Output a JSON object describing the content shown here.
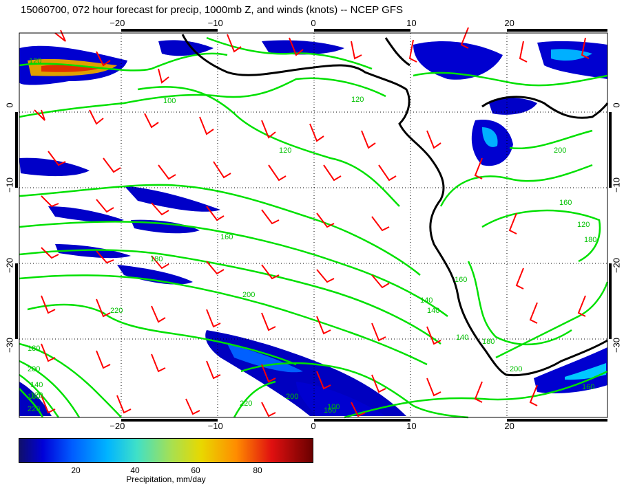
{
  "title": "15060700, 072 hour forecast for precip, 1000mb Z, and winds (knots) -- NCEP GFS",
  "map": {
    "lon_range": [
      -30,
      30
    ],
    "lat_range": [
      -39,
      9
    ],
    "x_ticks": [
      {
        "v": -20,
        "t": "−20"
      },
      {
        "v": -10,
        "t": "−10"
      },
      {
        "v": 0,
        "t": "0"
      },
      {
        "v": 10,
        "t": "10"
      },
      {
        "v": 20,
        "t": "20"
      }
    ],
    "y_ticks": [
      {
        "v": 0,
        "t": "0"
      },
      {
        "v": -10,
        "t": "−10"
      },
      {
        "v": -20,
        "t": "−20"
      },
      {
        "v": -30,
        "t": "−30"
      }
    ],
    "contour_color": "#00e000",
    "barb_color": "#ff0000",
    "coast_color": "#000000",
    "contour_labels": [
      "120",
      "100",
      "120",
      "120",
      "140",
      "160",
      "180",
      "200",
      "220",
      "160",
      "120",
      "140",
      "160",
      "180",
      "200",
      "140",
      "180",
      "200",
      "220",
      "160",
      "180",
      "200",
      "100",
      "120",
      "140",
      "160",
      "180",
      "200",
      "220"
    ]
  },
  "colorbar": {
    "ticks": [
      "20",
      "40",
      "60",
      "80"
    ],
    "label": "Precipitation, mm/day"
  }
}
